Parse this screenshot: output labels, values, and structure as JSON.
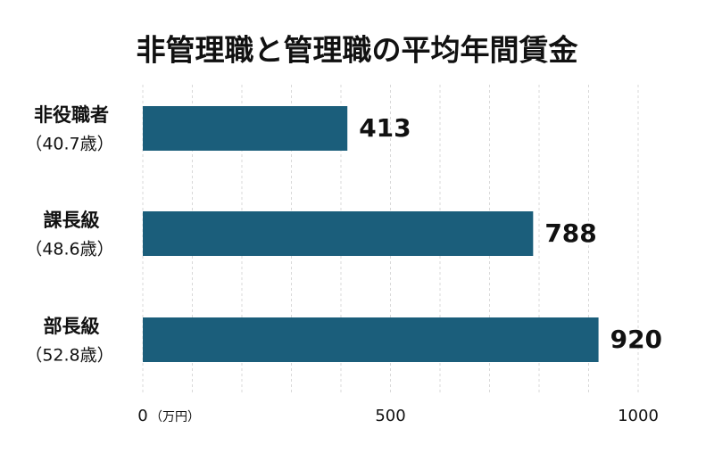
{
  "chart_data": {
    "type": "bar",
    "orientation": "horizontal",
    "title": "非管理職と管理職の平均年間賃金",
    "categories": [
      "非役職者",
      "課長級",
      "部長級"
    ],
    "category_ages": [
      "（40.7歳）",
      "（48.6歳）",
      "（52.8歳）"
    ],
    "values": [
      413,
      788,
      920
    ],
    "color": "#1b5e7b",
    "xlim": [
      0,
      1000
    ],
    "xticks": [
      0,
      500,
      1000
    ],
    "xgrid": [
      0,
      100,
      200,
      300,
      400,
      500,
      600,
      700,
      800,
      900,
      1000
    ],
    "x_unit": "（万円）",
    "grid": true
  }
}
